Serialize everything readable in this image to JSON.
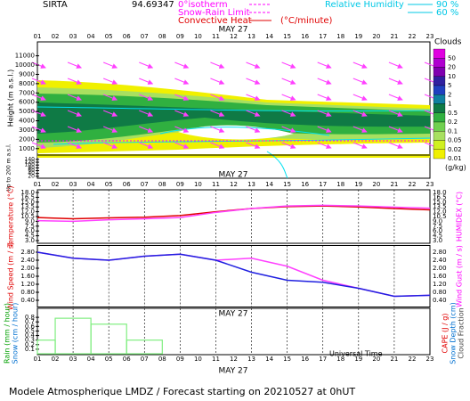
{
  "header": {
    "station": "SIRTA",
    "coords": "94.69347",
    "legend": [
      {
        "label": "0°isotherm",
        "color": "#ff00ff"
      },
      {
        "label": "Snow-Rain Limit",
        "color": "#ff00ff"
      },
      {
        "label": "Convective Heat",
        "color": "#e00000"
      }
    ],
    "convective_unit": "(°C/minute)",
    "rh_title": "Relative Humidity",
    "rh_levels": [
      {
        "label": "90 %",
        "color": "#00c8e6"
      },
      {
        "label": "60 %",
        "color": "#00c8e6"
      }
    ]
  },
  "hours": [
    "01",
    "02",
    "03",
    "04",
    "05",
    "06",
    "07",
    "08",
    "09",
    "10",
    "11",
    "12",
    "13",
    "14",
    "15",
    "16",
    "17",
    "18",
    "19",
    "20",
    "21",
    "22",
    "23"
  ],
  "chart_data": [
    {
      "type": "clouds",
      "date": "MAY 27",
      "ylabel": "Height (m a.s.l.)",
      "ylim": [
        500,
        12500
      ],
      "yticks": [
        1000,
        2000,
        3000,
        4000,
        5000,
        6000,
        7000,
        8000,
        9000,
        10000,
        11000
      ],
      "lower_label": "Up to 200 m a.s.l.",
      "lower_ylim": [
        0,
        150
      ],
      "lower_yticks": [
        20,
        40,
        60,
        80,
        100,
        120,
        140
      ],
      "colorbar_title": "Clouds",
      "colorbar_unit": "(g/kg)",
      "colorbar_ticks": [
        50,
        20,
        10,
        5,
        2,
        1,
        0.5,
        0.2,
        0.1,
        0.05,
        0.02,
        0.01
      ],
      "colorbar_colors": [
        "#e000e0",
        "#b000d0",
        "#8000b0",
        "#3020a0",
        "#2040c0",
        "#1080a0",
        "#0f7a45",
        "#30b040",
        "#70d050",
        "#a8e060",
        "#d0f020",
        "#f0f000"
      ]
    },
    {
      "type": "line",
      "ylabel": "Temperature (°C)",
      "y2label": "HUMIDEX (°C)",
      "x": [
        1,
        3,
        5,
        7,
        9,
        11,
        13,
        15,
        17,
        19,
        21,
        23
      ],
      "xlim": [
        1,
        23
      ],
      "ylim": [
        3,
        18
      ],
      "yticks": [
        {
          "value": 3,
          "label": "3.0"
        },
        {
          "value": 4.5,
          "label": "4.5"
        },
        {
          "value": 6,
          "label": "6.0"
        },
        {
          "value": 7.5,
          "label": "7.5"
        },
        {
          "value": 9,
          "label": "9.0"
        },
        {
          "value": 10.5,
          "label": "10.5"
        },
        {
          "value": 12,
          "label": "12.0"
        },
        {
          "value": 13.5,
          "label": "13.5"
        },
        {
          "value": 15,
          "label": "15.0"
        },
        {
          "value": 16.5,
          "label": "16.5"
        },
        {
          "value": 18,
          "label": "18.0"
        }
      ],
      "series": [
        {
          "color": "#e00000",
          "values": [
            10.2,
            9.8,
            10.1,
            10.3,
            10.8,
            12.0,
            13.0,
            13.6,
            13.8,
            13.5,
            13.0,
            12.6
          ]
        },
        {
          "color": "#ff40ff",
          "values": [
            9.2,
            9.0,
            9.5,
            9.8,
            10.2,
            11.8,
            13.0,
            13.8,
            14.0,
            13.8,
            13.4,
            13.1
          ]
        }
      ]
    },
    {
      "type": "line",
      "ylabel": "Wind Speed (m / s)",
      "y2label": "Wind Gust (m / s)",
      "x": [
        1,
        3,
        5,
        7,
        9,
        11,
        13,
        15,
        17,
        19,
        21,
        23
      ],
      "xlim": [
        1,
        23
      ],
      "ylim": [
        0.2,
        3.0
      ],
      "yticks": [
        {
          "value": 0.4,
          "label": "0.40"
        },
        {
          "value": 0.8,
          "label": "0.80"
        },
        {
          "value": 1.2,
          "label": "1.20"
        },
        {
          "value": 1.6,
          "label": "1.60"
        },
        {
          "value": 2,
          "label": "2.00"
        },
        {
          "value": 2.4,
          "label": "2.40"
        },
        {
          "value": 2.8,
          "label": "2.80"
        }
      ],
      "series": [
        {
          "color": "#ff40ff",
          "values": [
            2.8,
            2.5,
            2.4,
            2.6,
            2.7,
            2.4,
            2.5,
            2.1,
            1.4,
            1.0,
            0.6,
            0.65
          ]
        },
        {
          "color": "#2020e0",
          "values": [
            2.8,
            2.5,
            2.4,
            2.6,
            2.7,
            2.4,
            1.8,
            1.4,
            1.3,
            1.0,
            0.6,
            0.65
          ]
        }
      ]
    },
    {
      "type": "histogram",
      "date": "MAY 27",
      "xlabel": "Universal Time",
      "ylabel": [
        "Rain (mm / hour)",
        "Snow (cm / hour)"
      ],
      "y2label": [
        "CAPE (J / g)",
        "Snow Depth (cm)",
        "Cloud Fraction"
      ],
      "xlim": [
        1,
        23
      ],
      "ylim": [
        0,
        0.9
      ],
      "yticks": [
        0.1,
        0.2,
        0.3,
        0.4,
        0.5,
        0.6,
        0.7,
        0.8
      ],
      "bins": [
        1,
        2,
        4,
        6,
        8,
        23
      ],
      "values": [
        0.3,
        0.78,
        0.65,
        0.3,
        0
      ],
      "color": "#80ee80"
    }
  ],
  "footer": "Modele Atmospherique LMDZ / Forecast starting on 20210527 at 0hUT"
}
